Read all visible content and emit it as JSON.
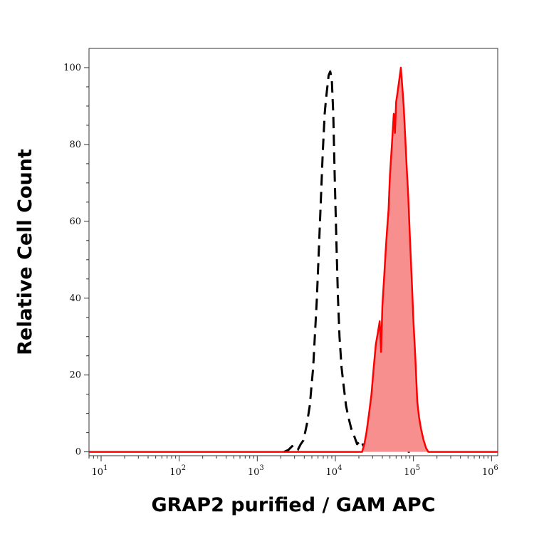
{
  "chart_data": {
    "type": "area",
    "xlabel": "GRAP2 purified / GAM APC",
    "ylabel": "Relative Cell Count",
    "x_scale": "log",
    "xlim": [
      7,
      1200000
    ],
    "ylim": [
      -1,
      105
    ],
    "x_ticks": [
      {
        "value": 10,
        "base": "10",
        "exp": "1"
      },
      {
        "value": 100,
        "base": "10",
        "exp": "2"
      },
      {
        "value": 1000,
        "base": "10",
        "exp": "3"
      },
      {
        "value": 10000,
        "base": "10",
        "exp": "4"
      },
      {
        "value": 100000,
        "base": "10",
        "exp": "5"
      },
      {
        "value": 1000000,
        "base": "10",
        "exp": "6"
      }
    ],
    "y_ticks": [
      0,
      20,
      40,
      60,
      80,
      100
    ],
    "grid": false,
    "legend": "none",
    "series": [
      {
        "style": "dashed",
        "color": "#000000",
        "x": [
          2200,
          2500,
          2800,
          3000,
          3300,
          3600,
          3900,
          4300,
          4700,
          5200,
          5800,
          6300,
          6900,
          7300,
          7600,
          7900,
          8200,
          8600,
          9000,
          9400,
          9800,
          10300,
          10800,
          11300,
          12000,
          12800,
          13700,
          14700,
          16000,
          17500,
          19000,
          21000,
          23000,
          26000,
          29000,
          33000,
          38000,
          45000,
          55000,
          70000,
          90000
        ],
        "y": [
          0,
          0.5,
          1.5,
          0.5,
          0.5,
          2,
          3,
          7,
          12,
          22,
          40,
          58,
          78,
          88,
          92,
          95,
          98,
          99,
          97,
          88,
          72,
          55,
          40,
          30,
          22,
          17,
          12,
          9,
          6,
          4,
          2,
          3,
          1.5,
          0.5,
          0.5,
          1.5,
          0.5,
          0.5,
          1.5,
          0.5,
          0
        ]
      },
      {
        "style": "filled",
        "color": "#ff0000",
        "fill": "#f88f8f",
        "x": [
          20000,
          22000,
          23500,
          25000,
          27000,
          29000,
          31000,
          33000,
          35000,
          37000,
          38500,
          40000,
          42000,
          44000,
          46000,
          48000,
          50000,
          53000,
          56000,
          58000,
          60000,
          63000,
          66000,
          69000,
          72000,
          75000,
          78000,
          82000,
          86000,
          90000,
          95000,
          100000,
          106000,
          112000,
          118000,
          125000,
          135000,
          145000,
          155000,
          170000
        ],
        "y": [
          0,
          0,
          2,
          5,
          10,
          15,
          22,
          28,
          31,
          34,
          26,
          38,
          45,
          52,
          58,
          63,
          72,
          80,
          88,
          83,
          91,
          94,
          97,
          100,
          95,
          90,
          83,
          74,
          66,
          56,
          45,
          34,
          24,
          13,
          9,
          6,
          3,
          1,
          0,
          0
        ]
      }
    ]
  }
}
